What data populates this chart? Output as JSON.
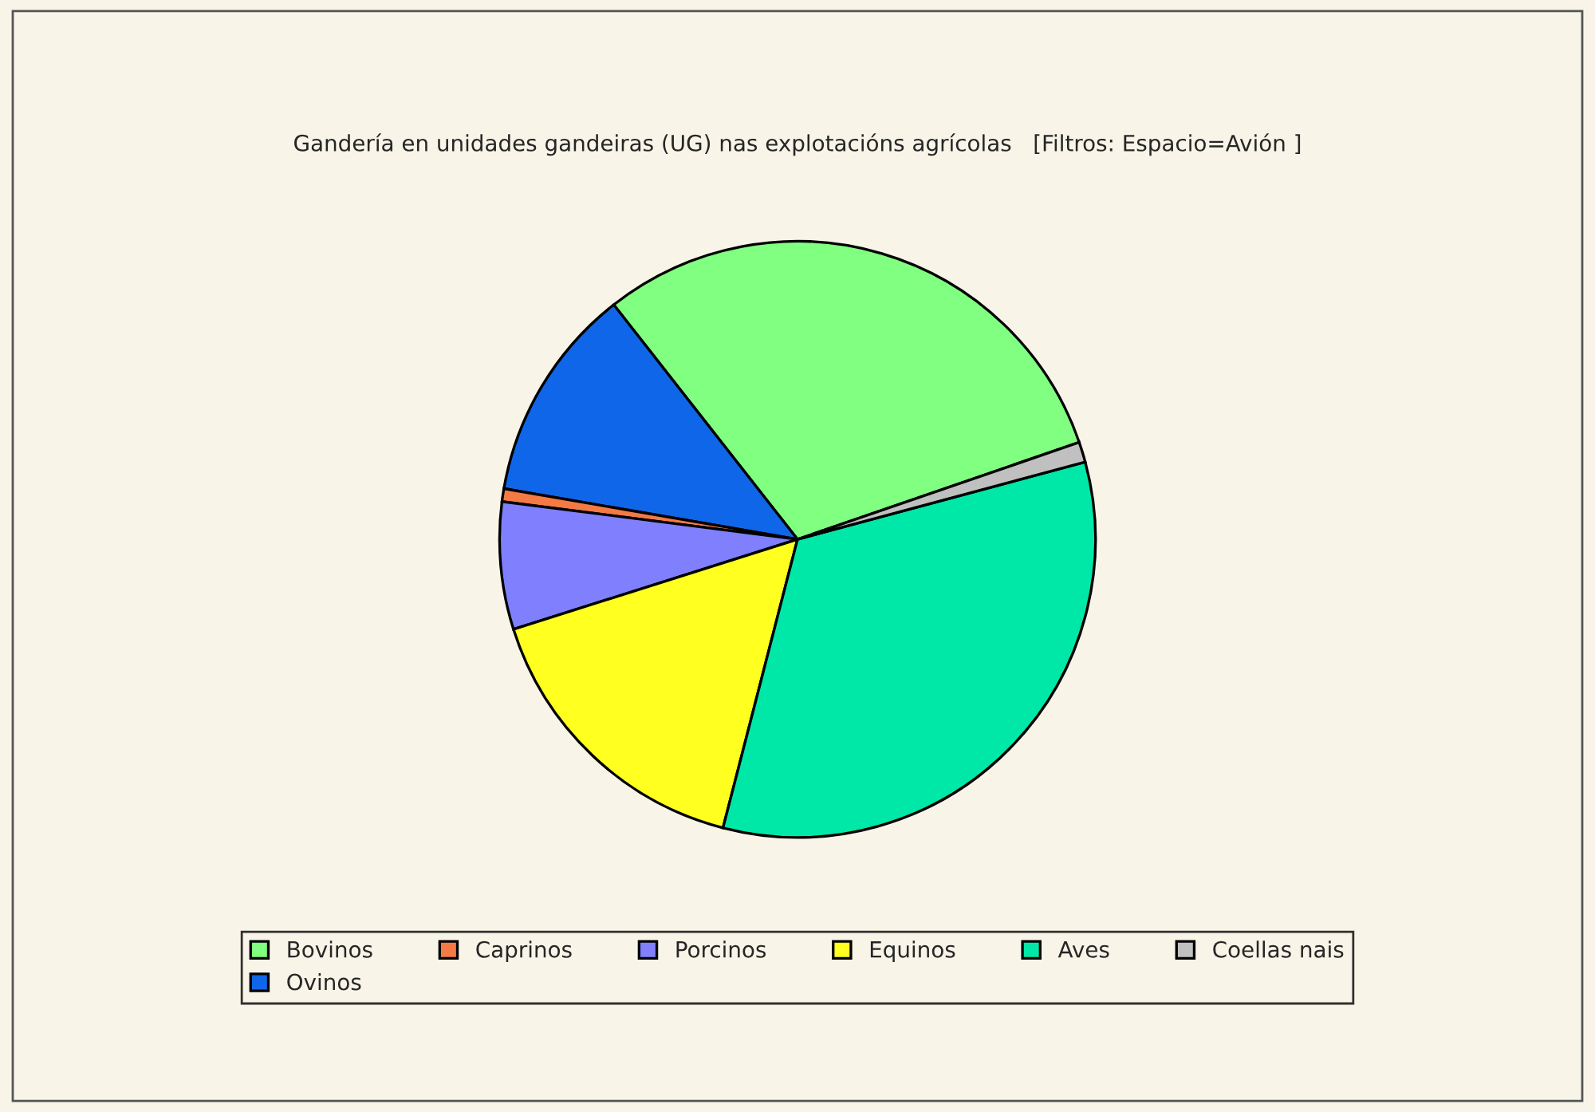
{
  "chart_data": {
    "type": "pie",
    "title": "Gandería en unidades gandeiras (UG) nas explotacións agrícolas   [Filtros: Espacio=Avión ]",
    "categories": [
      "Bovinos",
      "Ovinos",
      "Caprinos",
      "Porcinos",
      "Equinos",
      "Aves",
      "Coellas nais"
    ],
    "values": [
      30.3,
      11.7,
      0.7,
      6.9,
      16.1,
      33.2,
      1.1
    ],
    "colors": [
      "#80ff80",
      "#1066e8",
      "#f47a45",
      "#8080ff",
      "#ffff20",
      "#00e8a8",
      "#c0c0c0"
    ],
    "legend": "bottom"
  }
}
